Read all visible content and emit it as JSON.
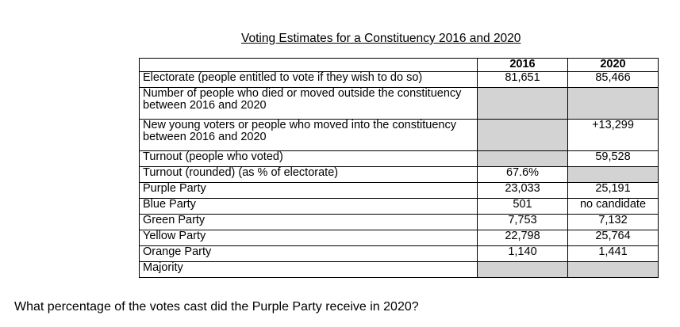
{
  "title": "Voting Estimates for a Constituency 2016 and 2020",
  "table": {
    "year_headers": [
      "2016",
      "2020"
    ],
    "rows": [
      {
        "label": "Electorate (people entitled to vote if they wish to do so)",
        "v2016": "81,651",
        "v2020": "85,466"
      },
      {
        "label": "Number of people who died or moved outside the constituency between 2016 and 2020",
        "v2016": "",
        "v2020": ""
      },
      {
        "label": "New young voters or people who moved into the constituency between 2016 and 2020",
        "v2016": "",
        "v2020": "+13,299"
      },
      {
        "label": "Turnout (people who voted)",
        "v2016": "",
        "v2020": "59,528"
      },
      {
        "label": "Turnout (rounded) (as % of electorate)",
        "v2016": "67.6%",
        "v2020": ""
      },
      {
        "label": "Purple Party",
        "v2016": "23,033",
        "v2020": "25,191"
      },
      {
        "label": "Blue Party",
        "v2016": "501",
        "v2020": "no candidate"
      },
      {
        "label": "Green Party",
        "v2016": "7,753",
        "v2020": "7,132"
      },
      {
        "label": "Yellow Party",
        "v2016": "22,798",
        "v2020": "25,764"
      },
      {
        "label": "Orange Party",
        "v2016": "1,140",
        "v2020": "1,441"
      },
      {
        "label": "Majority",
        "v2016": "",
        "v2020": ""
      }
    ]
  },
  "question": "What percentage of the votes cast did the Purple Party receive in 2020?",
  "colors": {
    "shaded_cell": "#d3d3d3",
    "border": "#000000"
  }
}
